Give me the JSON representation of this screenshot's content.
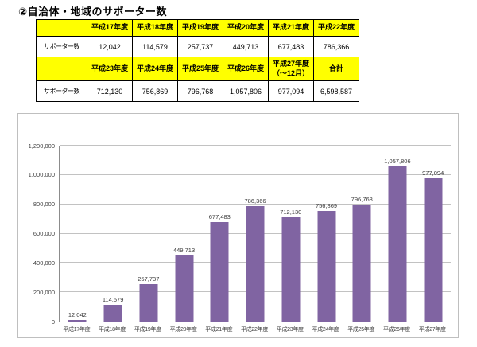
{
  "page": {
    "title": "②自治体・地域のサポーター数"
  },
  "table": {
    "row_header": "サポーター数",
    "header_bg": "#FFFF00",
    "groups": [
      {
        "headers": [
          "平成17年度",
          "平成18年度",
          "平成19年度",
          "平成20年度",
          "平成21年度",
          "平成22年度"
        ],
        "values": [
          "12,042",
          "114,579",
          "257,737",
          "449,713",
          "677,483",
          "786,366"
        ]
      },
      {
        "headers": [
          "平成23年度",
          "平成24年度",
          "平成25年度",
          "平成26年度",
          "平成27年度\n（～12月）",
          "合計"
        ],
        "values": [
          "712,130",
          "756,869",
          "796,768",
          "1,057,806",
          "977,094",
          "6,598,587"
        ]
      }
    ]
  },
  "chart_data": {
    "type": "bar",
    "title": "",
    "xlabel": "",
    "ylabel": "",
    "categories": [
      "平成17年度",
      "平成18年度",
      "平成19年度",
      "平成20年度",
      "平成21年度",
      "平成22年度",
      "平成23年度",
      "平成24年度",
      "平成25年度",
      "平成26年度",
      "平成27年度"
    ],
    "values": [
      12042,
      114579,
      257737,
      449713,
      677483,
      786366,
      712130,
      756869,
      796768,
      1057806,
      977094
    ],
    "value_labels": [
      "12,042",
      "114,579",
      "257,737",
      "449,713",
      "677,483",
      "786,366",
      "712,130",
      "756,869",
      "796,768",
      "1,057,806",
      "977,094"
    ],
    "ylim": [
      0,
      1200000
    ],
    "ytick_interval": 200000,
    "ytick_labels": [
      "0",
      "200,000",
      "400,000",
      "600,000",
      "800,000",
      "1,000,000",
      "1,200,000"
    ],
    "grid": true,
    "legend": "none",
    "bar_color": "#8064A2",
    "gridline_color": "#c2c2c2",
    "axis_color": "#8c8c8c"
  }
}
